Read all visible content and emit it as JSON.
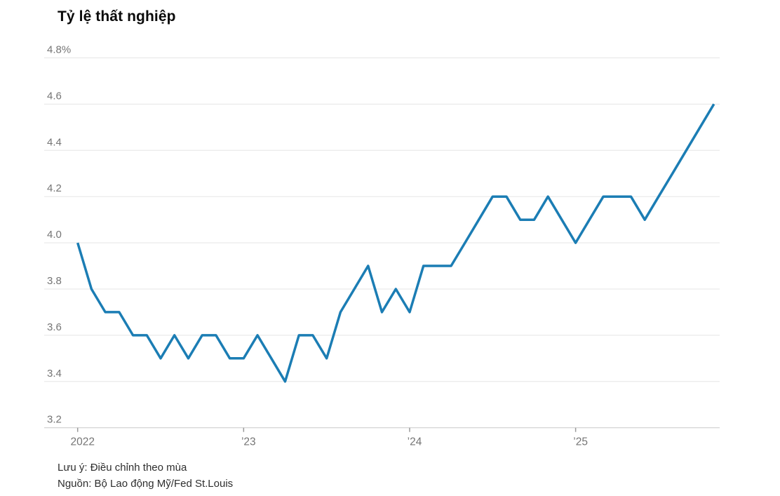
{
  "chart_data": {
    "type": "line",
    "title": "Tỷ lệ thất nghiệp",
    "unit": "%",
    "x_start": "2022-01",
    "x_frequency": "monthly",
    "series": [
      {
        "name": "Tỷ lệ thất nghiệp",
        "values": [
          4.0,
          3.8,
          3.7,
          3.7,
          3.6,
          3.6,
          3.5,
          3.6,
          3.5,
          3.6,
          3.6,
          3.5,
          3.5,
          3.6,
          3.5,
          3.4,
          3.6,
          3.6,
          3.5,
          3.7,
          3.8,
          3.9,
          3.7,
          3.8,
          3.7,
          3.9,
          3.9,
          3.9,
          4.0,
          4.1,
          4.2,
          4.2,
          4.1,
          4.1,
          4.2,
          4.1,
          4.0,
          4.1,
          4.2,
          4.2,
          4.2,
          4.1,
          4.2,
          4.3,
          4.4,
          4.5,
          4.6
        ]
      }
    ],
    "ylim": [
      3.2,
      4.8
    ],
    "y_ticks": [
      {
        "value": 4.8,
        "label": "4.8%"
      },
      {
        "value": 4.6,
        "label": "4.6"
      },
      {
        "value": 4.4,
        "label": "4.4"
      },
      {
        "value": 4.2,
        "label": "4.2"
      },
      {
        "value": 4.0,
        "label": "4.0"
      },
      {
        "value": 3.8,
        "label": "3.8"
      },
      {
        "value": 3.6,
        "label": "3.6"
      },
      {
        "value": 3.4,
        "label": "3.4"
      },
      {
        "value": 3.2,
        "label": "3.2"
      }
    ],
    "x_ticks": [
      {
        "label": "2022",
        "month_index": 0
      },
      {
        "label": "’23",
        "month_index": 12
      },
      {
        "label": "’24",
        "month_index": 24
      },
      {
        "label": "’25",
        "month_index": 36
      }
    ],
    "grid": true,
    "legend_position": "none",
    "colors": {
      "line": "#1b7db4",
      "grid": "#e5e5e5",
      "axis": "#c9c9c9",
      "tick": "#9a9a9a",
      "axis_label": "#757575"
    }
  },
  "notes": {
    "seasonal": "Lưu ý: Điều chỉnh theo mùa",
    "source": "Nguồn: Bộ Lao động Mỹ/Fed St.Louis"
  }
}
